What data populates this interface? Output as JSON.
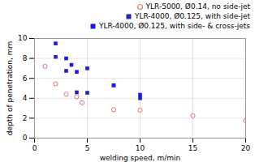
{
  "chart_data": {
    "type": "scatter",
    "xlabel": "welding speed, m/min",
    "ylabel": "depth of penetration, mm",
    "series": [
      {
        "name": "YLR-5000, Ø0.14, no side-jet",
        "color": "#e87070",
        "marker": "circle_open",
        "x": [
          1,
          2,
          3,
          4,
          4.5,
          7.5,
          10,
          15,
          20
        ],
        "values": [
          7.2,
          5.45,
          4.4,
          4.15,
          3.55,
          2.85,
          2.8,
          2.25,
          1.75
        ]
      },
      {
        "name": "YLR-4000, Ø0.125, with side-jet",
        "color": "#2222bb",
        "marker": "square",
        "x": [
          2,
          3,
          4,
          5,
          7.5,
          10
        ],
        "values": [
          8.15,
          6.75,
          4.6,
          4.55,
          5.3,
          4.0
        ]
      },
      {
        "name": "YLR-4000, Ø0.125, with side- & cross-jets",
        "color": "#1a1aee",
        "marker": "square",
        "x": [
          2,
          3,
          3.5,
          4,
          5,
          7.5,
          10
        ],
        "values": [
          9.5,
          8.0,
          7.35,
          6.65,
          7.0,
          5.3,
          4.35
        ]
      }
    ],
    "xlim": [
      0,
      20
    ],
    "ylim": [
      0,
      10
    ],
    "xticks": [
      0,
      5,
      10,
      15,
      20
    ],
    "yticks": [
      0,
      2,
      4,
      6,
      8,
      10
    ],
    "grid": true,
    "legend": "upper right"
  }
}
